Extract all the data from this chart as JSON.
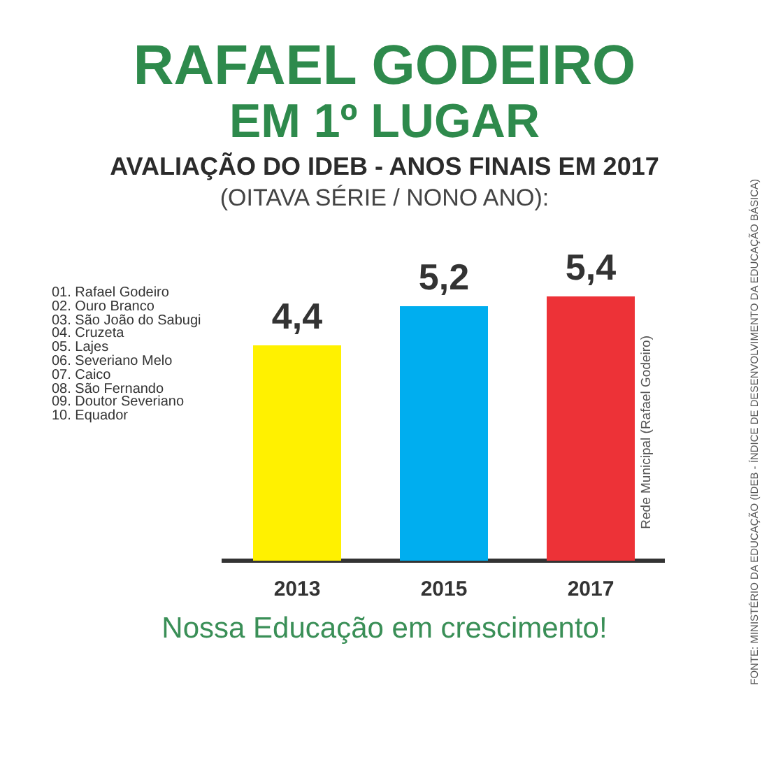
{
  "chart_data": {
    "type": "bar",
    "title": "RAFAEL GODEIRO\nEM 1º LUGAR",
    "subtitle": "AVALIAÇÃO DO IDEB - ANOS FINAIS EM 2017\n(OITAVA SÉRIE / NONO ANO):",
    "categories": [
      "2013",
      "2015",
      "2017"
    ],
    "values": [
      4.4,
      5.2,
      5.4
    ],
    "colors": [
      "#fff100",
      "#00aeef",
      "#ed3237"
    ],
    "value_labels": [
      "4,4",
      "5,2",
      "5,4"
    ],
    "annotations": [
      "01. Rafael Godeiro",
      "02. Ouro Branco",
      "03. São João do Sabugi",
      "04. Cruzeta",
      "05. Lajes",
      "06. Severiano Melo",
      "07. Caico",
      "08. São Fernando",
      "09. Doutor Severiano",
      "10. Equador",
      "Rede Municipal (Rafael Godeiro)",
      "Nossa Educação em crescimento!",
      "FONTE: MINISTÉRIO DA EDUCAÇÃO (IDEB - ÍNDICE DE DESENVOLVIMENTO DA EDUCAÇÃO BÁSICA)"
    ]
  }
}
